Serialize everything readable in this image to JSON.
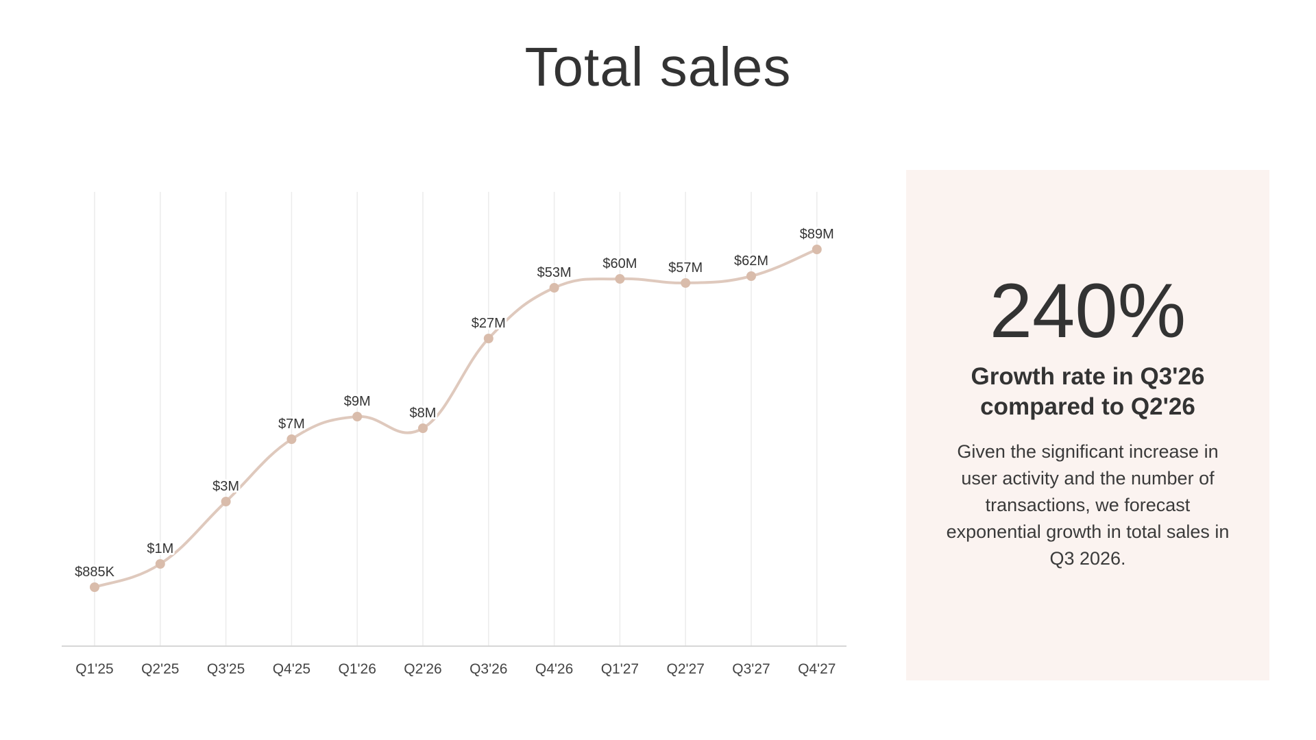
{
  "slide": {
    "title": "Total sales"
  },
  "panel": {
    "big_number": "240%",
    "subhead": "Growth rate in Q3'26 compared to Q2'26",
    "description": "Given the significant increase in user activity and the number of transactions, we forecast exponential growth in total sales in Q3 2026."
  },
  "colors": {
    "line": "#dfc9bd",
    "point": "#d9bcab",
    "grid": "#ececec",
    "axis": "#d6d6d6",
    "panel_bg": "#fbf3f0",
    "text": "#333333"
  },
  "chart_data": {
    "type": "line",
    "title": "Total sales",
    "categories": [
      "Q1'25",
      "Q2'25",
      "Q3'25",
      "Q4'25",
      "Q1'26",
      "Q2'26",
      "Q3'26",
      "Q4'26",
      "Q1'27",
      "Q2'27",
      "Q3'27",
      "Q4'27"
    ],
    "values": [
      0.885,
      1,
      3,
      7,
      9,
      8,
      27,
      53,
      60,
      57,
      62,
      89
    ],
    "value_unit": "$M",
    "data_labels": [
      "$885K",
      "$1M",
      "$3M",
      "$7M",
      "$9M",
      "$8M",
      "$27M",
      "$53M",
      "$60M",
      "$57M",
      "$62M",
      "$89M"
    ],
    "grid": "vertical",
    "legend": "none",
    "smooth": true
  }
}
